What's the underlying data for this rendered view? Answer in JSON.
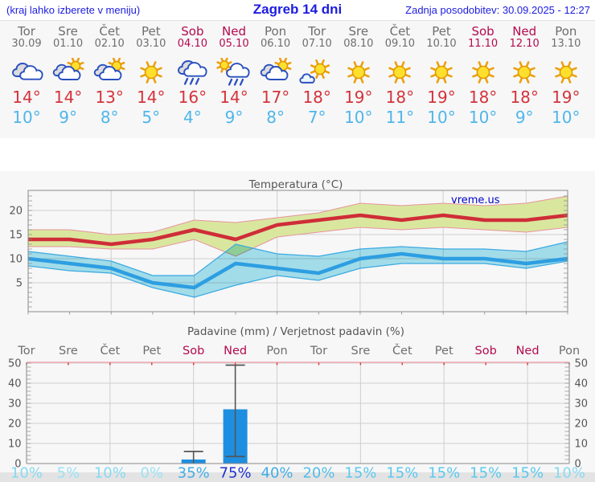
{
  "header": {
    "left_note": "(kraj lahko izberete v meniju)",
    "title": "Zagreb 14 dni",
    "updated": "Zadnja posodobitev: 30.09.2025 - 12:27"
  },
  "colors": {
    "header_blue": "#1c1ce0",
    "day_gray": "#6e6e6e",
    "weekend": "#b40a4e",
    "high_red": "#d4333b",
    "low_blue": "#4fb6ea",
    "strip_bg": "#f7f7f7",
    "chart_bg": "#f7f7f7",
    "grid": "#cfcfcf",
    "spine": "#8a8a8a",
    "axis_label": "#555555",
    "band_high": "#d9e79e",
    "band_high_edge": "#e6939d",
    "band_low": "#a7e3f1",
    "band_low_edge": "#39a9e2",
    "line_high": "#cf2d38",
    "line_low": "#2d9ee1",
    "bar_blue": "#1e8fe0",
    "whisker": "#555555",
    "top_border_pink": "#f2aab6",
    "day_tick_red": "#dd3333",
    "footer_bar": "#e3e3e3",
    "watermark_blue": "#0202cc"
  },
  "days": [
    {
      "name": "Tor",
      "date": "30.09",
      "weekend": false,
      "icon": "cloudy",
      "high": "14",
      "low": "10",
      "prob": "10%",
      "prob_color": "#86d9f2"
    },
    {
      "name": "Sre",
      "date": "01.10",
      "weekend": false,
      "icon": "partly-sunny",
      "high": "14",
      "low": "9",
      "prob": "5%",
      "prob_color": "#9ce1f4"
    },
    {
      "name": "Čet",
      "date": "02.10",
      "weekend": false,
      "icon": "partly-sunny",
      "high": "13",
      "low": "8",
      "prob": "10%",
      "prob_color": "#86d9f2"
    },
    {
      "name": "Pet",
      "date": "03.10",
      "weekend": false,
      "icon": "sunny",
      "high": "14",
      "low": "5",
      "prob": "0%",
      "prob_color": "#9ce1f4"
    },
    {
      "name": "Sob",
      "date": "04.10",
      "weekend": true,
      "icon": "rain",
      "high": "16",
      "low": "4",
      "prob": "35%",
      "prob_color": "#42ace6"
    },
    {
      "name": "Ned",
      "date": "05.10",
      "weekend": true,
      "icon": "sun-showers",
      "high": "14",
      "low": "9",
      "prob": "75%",
      "prob_color": "#2130d0"
    },
    {
      "name": "Pon",
      "date": "06.10",
      "weekend": false,
      "icon": "partly-sunny",
      "high": "17",
      "low": "8",
      "prob": "40%",
      "prob_color": "#42ace6"
    },
    {
      "name": "Tor",
      "date": "07.10",
      "weekend": false,
      "icon": "mostly-sunny",
      "high": "18",
      "low": "7",
      "prob": "20%",
      "prob_color": "#53bce9"
    },
    {
      "name": "Sre",
      "date": "08.10",
      "weekend": false,
      "icon": "sunny",
      "high": "19",
      "low": "10",
      "prob": "15%",
      "prob_color": "#5ac8ee"
    },
    {
      "name": "Čet",
      "date": "09.10",
      "weekend": false,
      "icon": "sunny",
      "high": "18",
      "low": "11",
      "prob": "15%",
      "prob_color": "#5ac8ee"
    },
    {
      "name": "Pet",
      "date": "10.10",
      "weekend": false,
      "icon": "sunny",
      "high": "19",
      "low": "10",
      "prob": "15%",
      "prob_color": "#5ac8ee"
    },
    {
      "name": "Sob",
      "date": "11.10",
      "weekend": true,
      "icon": "sunny",
      "high": "18",
      "low": "10",
      "prob": "15%",
      "prob_color": "#5ac8ee"
    },
    {
      "name": "Ned",
      "date": "12.10",
      "weekend": true,
      "icon": "sunny",
      "high": "18",
      "low": "9",
      "prob": "15%",
      "prob_color": "#5ac8ee"
    },
    {
      "name": "Pon",
      "date": "13.10",
      "weekend": false,
      "icon": "sunny",
      "high": "19",
      "low": "10",
      "prob": "10%",
      "prob_color": "#86d9f2"
    }
  ],
  "chart_data": [
    {
      "type": "area",
      "title": "Temperatura (°C)",
      "watermark": "vreme.us",
      "x_labels": [
        "Tor",
        "Sre",
        "Čet",
        "Pet",
        "Sob",
        "Ned",
        "Pon",
        "Tor",
        "Sre",
        "Čet",
        "Pet",
        "Sob",
        "Ned",
        "Pon"
      ],
      "ylim": [
        -1,
        24.2
      ],
      "yticks": [
        5,
        10,
        15,
        20
      ],
      "grid_days": [
        2,
        4,
        6,
        8,
        10,
        12
      ],
      "series": [
        {
          "name": "high",
          "values": [
            14,
            14,
            13,
            14,
            16,
            14,
            17,
            18,
            19,
            18,
            19,
            18,
            18,
            19
          ]
        },
        {
          "name": "high_max",
          "values": [
            16,
            16,
            15,
            15.5,
            18,
            17.5,
            18.5,
            19.5,
            21.5,
            21,
            21.5,
            21,
            21.5,
            23
          ]
        },
        {
          "name": "high_min",
          "values": [
            12.5,
            12.5,
            12,
            12,
            14,
            10.5,
            14.5,
            15.5,
            16.5,
            16,
            16.5,
            16,
            15.5,
            16.5
          ]
        },
        {
          "name": "low",
          "values": [
            10,
            9,
            8,
            5,
            4,
            9,
            8,
            7,
            10,
            11,
            10,
            10,
            9,
            10
          ]
        },
        {
          "name": "low_max",
          "values": [
            11.5,
            10.5,
            9.5,
            6.5,
            6.5,
            13,
            11,
            10.5,
            12,
            12.5,
            12,
            12,
            11.5,
            13.5
          ]
        },
        {
          "name": "low_min",
          "values": [
            8.5,
            7.5,
            7,
            4,
            2,
            4.5,
            6.5,
            5.5,
            8,
            9,
            9,
            9,
            8,
            9.5
          ]
        }
      ]
    },
    {
      "type": "bar",
      "title": "Padavine (mm) / Verjetnost padavin (%)",
      "categories": [
        "Tor",
        "Sre",
        "Čet",
        "Pet",
        "Sob",
        "Ned",
        "Pon",
        "Tor",
        "Sre",
        "Čet",
        "Pet",
        "Sob",
        "Ned",
        "Pon"
      ],
      "values": [
        0,
        0,
        0,
        0,
        2,
        27,
        0,
        0,
        0,
        0,
        0,
        0,
        0,
        0
      ],
      "whisker_min": [
        null,
        null,
        null,
        null,
        0,
        3.5,
        null,
        null,
        null,
        null,
        null,
        null,
        null,
        null
      ],
      "whisker_max": [
        null,
        null,
        null,
        null,
        6,
        49,
        null,
        null,
        null,
        null,
        null,
        null,
        null,
        null
      ],
      "ylim": [
        0,
        52
      ],
      "yticks": [
        0,
        10,
        20,
        30,
        40,
        50
      ],
      "probabilities": [
        "10%",
        "5%",
        "10%",
        "0%",
        "35%",
        "75%",
        "40%",
        "20%",
        "15%",
        "15%",
        "15%",
        "15%",
        "15%",
        "10%"
      ]
    }
  ]
}
